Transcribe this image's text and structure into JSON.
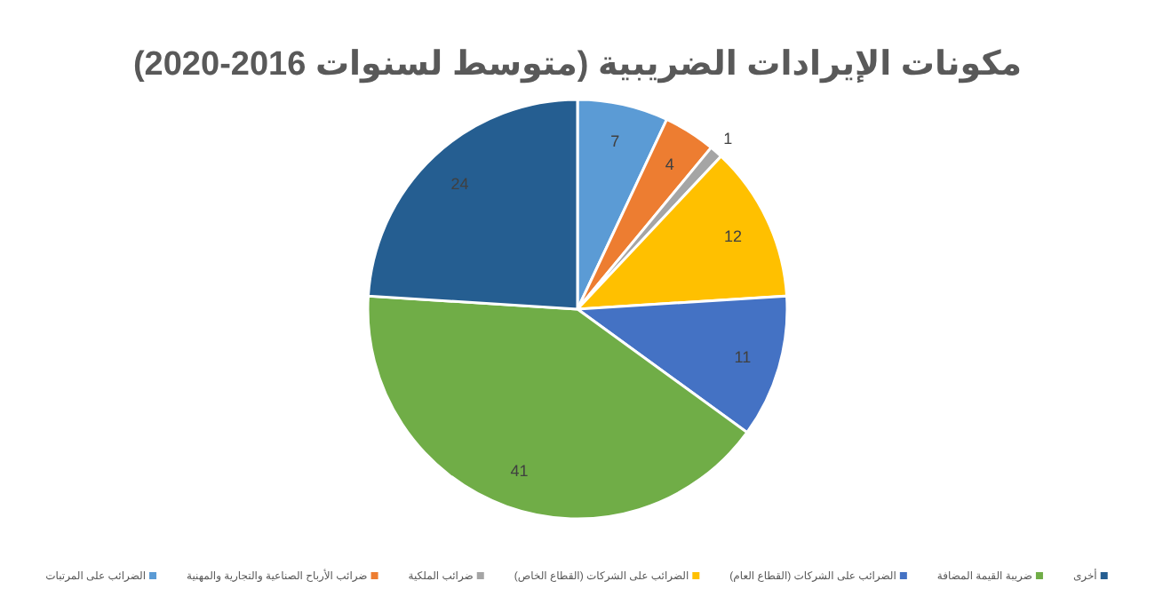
{
  "chart_data": {
    "type": "pie",
    "title": "مكونات الإيرادات الضريبية (متوسط لسنوات 2016-2020)",
    "categories": [
      "الضرائب على المرتبات",
      "ضرائب الأرباح الصناعية والتجارية والمهنية",
      "ضرائب الملكية",
      "الضرائب على الشركات (القطاع الخاص)",
      "الضرائب على الشركات (القطاع العام)",
      "ضريبة القيمة المضافة",
      "أخرى"
    ],
    "values": [
      7,
      4,
      1,
      12,
      11,
      41,
      24
    ],
    "colors": [
      "#5b9bd5",
      "#ed7d31",
      "#a5a5a5",
      "#ffc000",
      "#4472c4",
      "#70ad47",
      "#255e91"
    ],
    "data_labels": true,
    "legend": "bottom"
  }
}
